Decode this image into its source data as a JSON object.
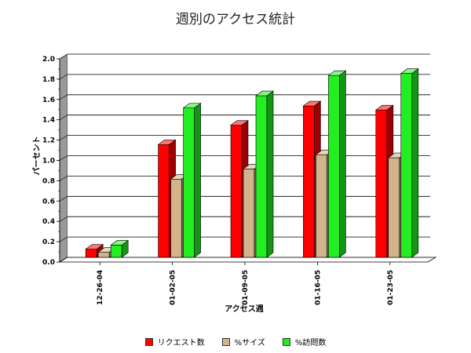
{
  "chart_data": {
    "type": "bar",
    "title": "週別のアクセス統計",
    "xlabel": "アクセス週",
    "ylabel": "パーセント",
    "categories": [
      "12-26-04",
      "01-02-05",
      "01-09-05",
      "01-16-05",
      "01-23-05"
    ],
    "series": [
      {
        "name": "リクエスト数",
        "values": [
          0.08,
          1.11,
          1.3,
          1.49,
          1.45
        ],
        "color": "#ff0000"
      },
      {
        "name": "%サイズ",
        "values": [
          0.05,
          0.77,
          0.87,
          1.01,
          0.98
        ],
        "color": "#d2b48c"
      },
      {
        "name": "%訪問数",
        "values": [
          0.12,
          1.47,
          1.59,
          1.79,
          1.81
        ],
        "color": "#22ee22"
      }
    ],
    "ylim": [
      0,
      2.0
    ],
    "yticks": [
      "0.0",
      "0.2",
      "0.4",
      "0.6",
      "0.8",
      "1.0",
      "1.2",
      "1.4",
      "1.6",
      "1.8",
      "2.0"
    ],
    "grid": true,
    "legend_position": "bottom",
    "style": "3d-bars"
  }
}
